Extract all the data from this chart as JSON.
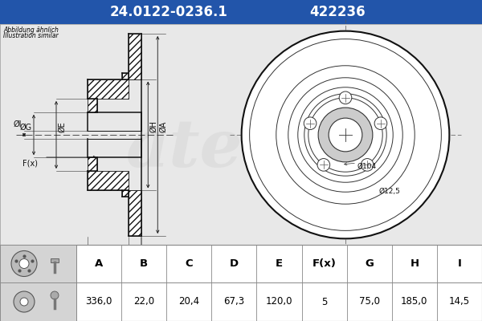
{
  "title_part": "24.0122-0236.1",
  "title_code": "422236",
  "subtitle1": "Abbildung ähnlich",
  "subtitle2": "Illustration similar",
  "bg_color": "#d8d8d8",
  "header_bg": "#2255aa",
  "header_text_color": "#ffffff",
  "table_headers": [
    "A",
    "B",
    "C",
    "D",
    "E",
    "F(x)",
    "G",
    "H",
    "I"
  ],
  "table_values": [
    "336,0",
    "22,0",
    "20,4",
    "67,3",
    "120,0",
    "5",
    "75,0",
    "185,0",
    "14,5"
  ],
  "annot_104": "Ø104",
  "annot_12_5": "Ø12,5"
}
